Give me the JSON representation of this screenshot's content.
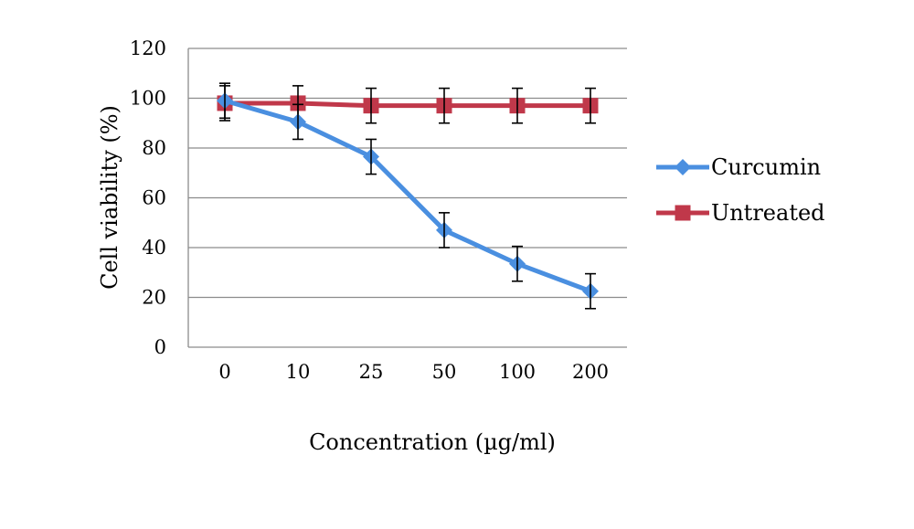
{
  "chart_data": {
    "type": "line",
    "title": "",
    "xlabel": "Concentration (µg/ml)",
    "ylabel": "Cell viability (%)",
    "categories": [
      "0",
      "10",
      "25",
      "50",
      "100",
      "200"
    ],
    "ylim": [
      0,
      120
    ],
    "yticks": [
      "0",
      "20",
      "40",
      "60",
      "80",
      "100",
      "120"
    ],
    "grid": true,
    "legend_position": "right",
    "series": [
      {
        "name": "Curcumin",
        "color": "#4a8fe0",
        "marker": "diamond",
        "values": [
          99,
          90.5,
          76.5,
          47,
          33.5,
          22.5
        ],
        "errors": [
          7,
          7,
          7,
          7,
          7,
          7
        ]
      },
      {
        "name": "Untreated",
        "color": "#c0384a",
        "marker": "square",
        "values": [
          98,
          98,
          97,
          97,
          97,
          97
        ],
        "errors": [
          7,
          7,
          7,
          7,
          7,
          7
        ]
      }
    ]
  }
}
